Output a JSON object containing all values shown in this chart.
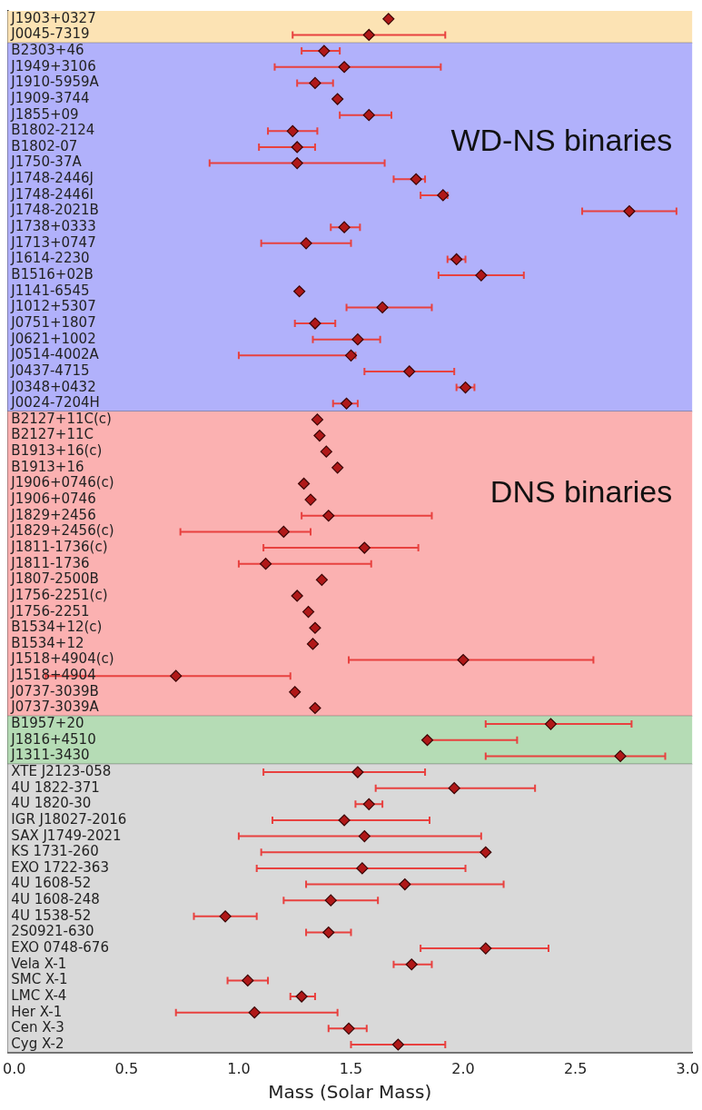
{
  "chart_data": {
    "type": "scatter",
    "orientation": "horizontal",
    "xlabel": "Mass (Solar Mass)",
    "categories": [
      "J1903+0327",
      "J0045-7319",
      "B2303+46",
      "J1949+3106",
      "J1910-5959A",
      "J1909-3744",
      "J1855+09",
      "B1802-2124",
      "B1802-07",
      "J1750-37A",
      "J1748-2446J",
      "J1748-2446I",
      "J1748-2021B",
      "J1738+0333",
      "J1713+0747",
      "J1614-2230",
      "B1516+02B",
      "J1141-6545",
      "J1012+5307",
      "J0751+1807",
      "J0621+1002",
      "J0514-4002A",
      "J0437-4715",
      "J0348+0432",
      "J0024-7204H",
      "B2127+11C(c)",
      "B2127+11C",
      "B1913+16(c)",
      "B1913+16",
      "J1906+0746(c)",
      "J1906+0746",
      "J1829+2456",
      "J1829+2456(c)",
      "J1811-1736(c)",
      "J1811-1736",
      "J1807-2500B",
      "J1756-2251(c)",
      "J1756-2251",
      "B1534+12(c)",
      "B1534+12",
      "J1518+4904(c)",
      "J1518+4904",
      "J0737-3039B",
      "J0737-3039A",
      "B1957+20",
      "J1816+4510",
      "J1311-3430",
      "XTE J2123-058",
      "4U 1822-371",
      "4U 1820-30",
      "IGR J18027-2016",
      "SAX J1749-2021",
      "KS 1731-260",
      "EXO 1722-363",
      "4U 1608-52",
      "4U 1608-248",
      "4U 1538-52",
      "2S0921-630",
      "EXO 0748-676",
      "Vela X-1",
      "SMC X-1",
      "LMC X-4",
      "Her X-1",
      "Cen X-3",
      "Cyg X-2"
    ],
    "series": [
      {
        "color": "#b01818",
        "values": [
          1.667,
          1.58,
          1.38,
          1.47,
          1.34,
          1.44,
          1.58,
          1.24,
          1.26,
          1.26,
          1.79,
          1.91,
          2.74,
          1.47,
          1.3,
          1.97,
          2.08,
          1.27,
          1.64,
          1.34,
          1.53,
          1.5,
          1.76,
          2.01,
          1.48,
          1.35,
          1.36,
          1.39,
          1.44,
          1.29,
          1.32,
          1.4,
          1.2,
          1.56,
          1.12,
          1.37,
          1.26,
          1.31,
          1.34,
          1.33,
          2.0,
          0.72,
          1.25,
          1.34,
          2.39,
          1.84,
          2.7,
          1.53,
          1.96,
          1.58,
          1.47,
          1.56,
          2.1,
          1.55,
          1.74,
          1.41,
          0.94,
          1.4,
          2.1,
          1.77,
          1.04,
          1.28,
          1.07,
          1.49,
          1.71
        ],
        "errors": [
          null,
          [
            1.24,
            1.92
          ],
          [
            1.28,
            1.45
          ],
          [
            1.16,
            1.9
          ],
          [
            1.26,
            1.42
          ],
          null,
          [
            1.45,
            1.68
          ],
          [
            1.13,
            1.35
          ],
          [
            1.09,
            1.34
          ],
          [
            0.87,
            1.65
          ],
          [
            1.69,
            1.83
          ],
          [
            1.81,
            1.93
          ],
          [
            2.53,
            2.95
          ],
          [
            1.41,
            1.54
          ],
          [
            1.1,
            1.5
          ],
          [
            1.93,
            2.01
          ],
          [
            1.89,
            2.27
          ],
          null,
          [
            1.48,
            1.86
          ],
          [
            1.25,
            1.43
          ],
          [
            1.33,
            1.63
          ],
          [
            1.0,
            1.52
          ],
          [
            1.56,
            1.96
          ],
          [
            1.97,
            2.05
          ],
          [
            1.42,
            1.53
          ],
          null,
          null,
          null,
          null,
          null,
          null,
          [
            1.28,
            1.86
          ],
          [
            0.74,
            1.32
          ],
          [
            1.11,
            1.8
          ],
          [
            1.0,
            1.59
          ],
          null,
          null,
          null,
          null,
          null,
          [
            1.49,
            2.58
          ],
          [
            0.14,
            1.23
          ],
          null,
          null,
          [
            2.1,
            2.75
          ],
          [
            1.84,
            2.24
          ],
          [
            2.1,
            2.9
          ],
          [
            1.11,
            1.83
          ],
          [
            1.61,
            2.32
          ],
          [
            1.52,
            1.64
          ],
          [
            1.15,
            1.85
          ],
          [
            1.0,
            2.08
          ],
          [
            1.1,
            2.1
          ],
          [
            1.08,
            2.01
          ],
          [
            1.3,
            2.18
          ],
          [
            1.2,
            1.62
          ],
          [
            0.8,
            1.08
          ],
          [
            1.3,
            1.5
          ],
          [
            1.81,
            2.38
          ],
          [
            1.69,
            1.86
          ],
          [
            0.95,
            1.13
          ],
          [
            1.23,
            1.34
          ],
          [
            0.72,
            1.44
          ],
          [
            1.4,
            1.57
          ],
          [
            1.5,
            1.92
          ]
        ]
      }
    ],
    "marker": "diamond",
    "legend": false,
    "grid": false,
    "xlim": [
      -0.03,
      3.02
    ],
    "xticks": [
      {
        "value": 0,
        "label": "0.0"
      },
      0.5,
      {
        "value": 1,
        "label": "1.0"
      },
      1.5,
      {
        "value": 2,
        "label": "2.0"
      },
      2.5,
      {
        "value": 3,
        "label": "3.0"
      }
    ],
    "bands": [
      {
        "axis": "y",
        "from": "J1903+0327",
        "to": "J0045-7319",
        "color": "#fce3b4"
      },
      {
        "axis": "y",
        "from": "B2303+46",
        "to": "J0024-7204H",
        "color": "#b1b1fb",
        "label": "WD-NS binaries"
      },
      {
        "axis": "y",
        "from": "B2127+11C(c)",
        "to": "J0737-3039A",
        "color": "#fbb1b1",
        "label": "DNS binaries"
      },
      {
        "axis": "y",
        "from": "B1957+20",
        "to": "J1311-3430",
        "color": "#b5dcb5"
      },
      {
        "axis": "y",
        "from": "XTE J2123-058",
        "to": "Cyg X-2",
        "color": "#d9d9d9"
      }
    ]
  }
}
